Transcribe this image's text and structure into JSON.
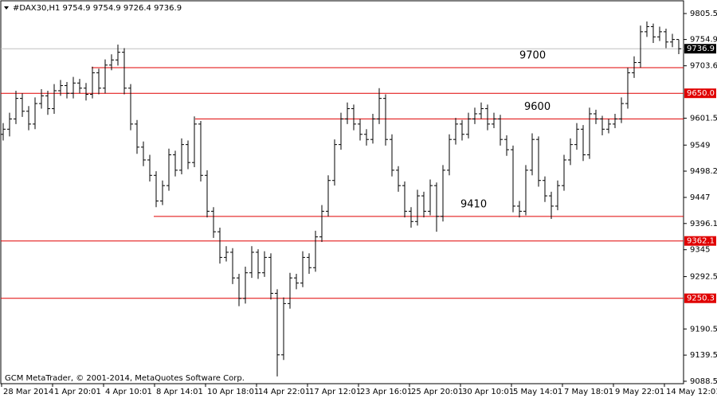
{
  "chart_data": {
    "type": "ohlc",
    "header": "#DAX30,H1  9754.9 9754.9 9726.4 9736.9",
    "footer": "GCM MetaTrader, © 2001-2014, MetaQuotes Software Corp.",
    "color": "#000000",
    "categories": [
      "28 Mar 2014",
      null,
      null,
      null,
      null,
      null,
      null,
      null,
      "1 Apr 20:01",
      null,
      null,
      null,
      null,
      null,
      null,
      null,
      "4 Apr 10:01",
      null,
      null,
      null,
      null,
      null,
      null,
      null,
      "8 Apr 14:01",
      null,
      null,
      null,
      null,
      null,
      null,
      null,
      "10 Apr 18:01",
      null,
      null,
      null,
      null,
      null,
      null,
      null,
      "14 Apr 22:01",
      null,
      null,
      null,
      null,
      null,
      null,
      null,
      "17 Apr 12:01",
      null,
      null,
      null,
      null,
      null,
      null,
      null,
      "23 Apr 16:01",
      null,
      null,
      null,
      null,
      null,
      null,
      null,
      "25 Apr 20:01",
      null,
      null,
      null,
      null,
      null,
      null,
      null,
      "30 Apr 10:01",
      null,
      null,
      null,
      null,
      null,
      null,
      null,
      "5 May 14:01",
      null,
      null,
      null,
      null,
      null,
      null,
      null,
      "7 May 18:01",
      null,
      null,
      null,
      null,
      null,
      null,
      null,
      "9 May 22:01",
      null,
      null,
      null,
      null,
      null,
      null,
      null,
      "14 May 12:01",
      null,
      null
    ],
    "open": [
      9570,
      9580,
      9600,
      9640,
      9615,
      9590,
      9630,
      9645,
      9620,
      9655,
      9665,
      9650,
      9670,
      9660,
      9648,
      9690,
      9660,
      9705,
      9715,
      9730,
      9660,
      9590,
      9545,
      9520,
      9490,
      9440,
      9470,
      9530,
      9500,
      9550,
      9515,
      9590,
      9490,
      9420,
      9380,
      9330,
      9340,
      9290,
      9250,
      9300,
      9340,
      9300,
      9330,
      9260,
      9140,
      9240,
      9290,
      9280,
      9330,
      9310,
      9370,
      9420,
      9480,
      9550,
      9600,
      9620,
      9590,
      9570,
      9560,
      9600,
      9640,
      9560,
      9500,
      9470,
      9420,
      9400,
      9450,
      9420,
      9470,
      9410,
      9500,
      9560,
      9590,
      9570,
      9600,
      9610,
      9620,
      9590,
      9600,
      9560,
      9540,
      9430,
      9420,
      9500,
      9560,
      9480,
      9450,
      9430,
      9470,
      9520,
      9550,
      9580,
      9530,
      9610,
      9600,
      9580,
      9590,
      9600,
      9630,
      9690,
      9710,
      9770,
      9780,
      9760,
      9770,
      9750,
      9754.9
    ],
    "high": [
      9592,
      9612,
      9655,
      9650,
      9625,
      9642,
      9658,
      9655,
      9668,
      9676,
      9672,
      9682,
      9678,
      9670,
      9702,
      9698,
      9716,
      9726,
      9745,
      9738,
      9668,
      9598,
      9556,
      9530,
      9498,
      9480,
      9542,
      9538,
      9562,
      9558,
      9605,
      9596,
      9500,
      9428,
      9388,
      9352,
      9348,
      9298,
      9312,
      9352,
      9346,
      9342,
      9338,
      9268,
      9252,
      9300,
      9298,
      9342,
      9338,
      9382,
      9432,
      9490,
      9560,
      9612,
      9632,
      9628,
      9600,
      9580,
      9610,
      9660,
      9648,
      9570,
      9508,
      9478,
      9428,
      9462,
      9458,
      9482,
      9476,
      9510,
      9570,
      9602,
      9598,
      9612,
      9622,
      9632,
      9628,
      9612,
      9608,
      9568,
      9548,
      9440,
      9510,
      9572,
      9566,
      9488,
      9458,
      9480,
      9530,
      9562,
      9592,
      9588,
      9622,
      9618,
      9606,
      9600,
      9610,
      9642,
      9700,
      9722,
      9782,
      9790,
      9786,
      9780,
      9776,
      9766,
      9754.9
    ],
    "low": [
      9558,
      9566,
      9590,
      9604,
      9578,
      9580,
      9620,
      9608,
      9610,
      9645,
      9640,
      9640,
      9650,
      9636,
      9640,
      9648,
      9650,
      9695,
      9704,
      9648,
      9578,
      9532,
      9508,
      9478,
      9428,
      9432,
      9460,
      9488,
      9492,
      9502,
      9506,
      9478,
      9408,
      9368,
      9318,
      9322,
      9278,
      9235,
      9240,
      9290,
      9288,
      9292,
      9248,
      9098,
      9130,
      9230,
      9268,
      9272,
      9298,
      9302,
      9360,
      9410,
      9470,
      9540,
      9590,
      9578,
      9558,
      9548,
      9552,
      9590,
      9548,
      9488,
      9458,
      9408,
      9388,
      9392,
      9408,
      9412,
      9380,
      9400,
      9490,
      9550,
      9558,
      9562,
      9590,
      9600,
      9578,
      9582,
      9548,
      9528,
      9418,
      9408,
      9412,
      9490,
      9468,
      9438,
      9405,
      9422,
      9460,
      9510,
      9540,
      9518,
      9522,
      9590,
      9568,
      9572,
      9582,
      9592,
      9620,
      9680,
      9700,
      9760,
      9748,
      9752,
      9738,
      9740,
      9726.4
    ],
    "close": [
      9580,
      9600,
      9640,
      9615,
      9590,
      9630,
      9645,
      9620,
      9655,
      9665,
      9650,
      9670,
      9660,
      9648,
      9690,
      9660,
      9705,
      9715,
      9730,
      9660,
      9590,
      9545,
      9520,
      9490,
      9440,
      9470,
      9530,
      9500,
      9550,
      9515,
      9590,
      9490,
      9420,
      9380,
      9330,
      9340,
      9290,
      9250,
      9300,
      9340,
      9300,
      9330,
      9260,
      9140,
      9240,
      9290,
      9280,
      9330,
      9310,
      9370,
      9420,
      9480,
      9550,
      9600,
      9620,
      9590,
      9570,
      9560,
      9600,
      9640,
      9560,
      9500,
      9470,
      9420,
      9400,
      9450,
      9420,
      9470,
      9410,
      9500,
      9560,
      9590,
      9570,
      9600,
      9610,
      9620,
      9590,
      9600,
      9560,
      9540,
      9430,
      9420,
      9500,
      9560,
      9480,
      9450,
      9430,
      9470,
      9520,
      9550,
      9580,
      9530,
      9610,
      9600,
      9580,
      9590,
      9600,
      9630,
      9690,
      9710,
      9770,
      9780,
      9760,
      9770,
      9750,
      9754.9,
      9736.9
    ],
    "ylim": [
      9083.8,
      9831.9
    ],
    "yticks": [
      9805.5,
      9754.9,
      9703.6,
      9601.5,
      9549.0,
      9498.2,
      9447.0,
      9396.1,
      9345.0,
      9292.5,
      9190.5,
      9139.5,
      9088.5
    ],
    "levels": [
      {
        "value": 9650,
        "label": "9650.0"
      },
      {
        "value": 9362.1,
        "label": "9362.1"
      },
      {
        "value": 9250.3,
        "label": "9250.3"
      }
    ],
    "level_color": "#e00000",
    "trend_levels": [
      9700,
      9600,
      9410
    ],
    "current_color": "#c0c0c0"
  }
}
